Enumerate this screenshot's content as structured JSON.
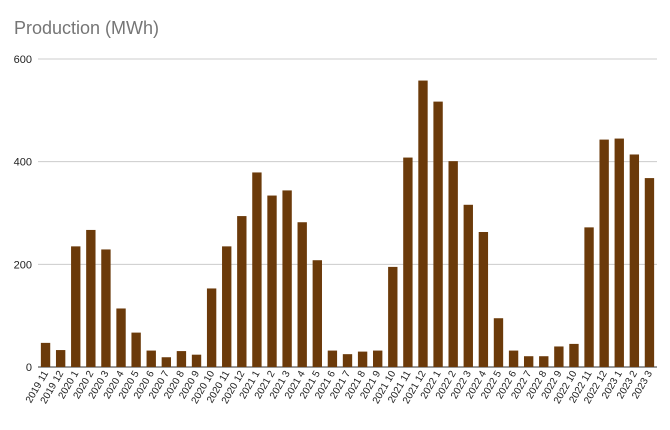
{
  "chart_data": {
    "type": "bar",
    "title": "Production (MWh)",
    "xlabel": "",
    "ylabel": "",
    "ylim": [
      0,
      600
    ],
    "yticks": [
      "0",
      "200",
      "400",
      "600"
    ],
    "grid": true,
    "legend": "none",
    "bar_color": "#6b3a0a",
    "grid_color": "#cccccc",
    "categories": [
      "2019 11",
      "2019 12",
      "2020 1",
      "2020 2",
      "2020 3",
      "2020 4",
      "2020 5",
      "2020 6",
      "2020 7",
      "2020 8",
      "2020 9",
      "2020 10",
      "2020 11",
      "2020 12",
      "2021 1",
      "2021 2",
      "2021 3",
      "2021 4",
      "2021 5",
      "2021 6",
      "2021 7",
      "2021 8",
      "2021 9",
      "2021 10",
      "2021 11",
      "2021 12",
      "2022 1",
      "2022 2",
      "2022 3",
      "2022 4",
      "2022 5",
      "2022 6",
      "2022 7",
      "2022 8",
      "2022 9",
      "2022 10",
      "2022 11",
      "2022 12",
      "2023 1",
      "2023 2",
      "2023 3"
    ],
    "values": [
      47,
      33,
      235,
      267,
      229,
      114,
      67,
      32,
      19,
      31,
      24,
      153,
      235,
      294,
      379,
      334,
      344,
      282,
      208,
      32,
      25,
      30,
      32,
      195,
      408,
      558,
      517,
      401,
      316,
      263,
      95,
      32,
      21,
      21,
      40,
      45,
      272,
      443,
      445,
      414,
      368
    ]
  }
}
